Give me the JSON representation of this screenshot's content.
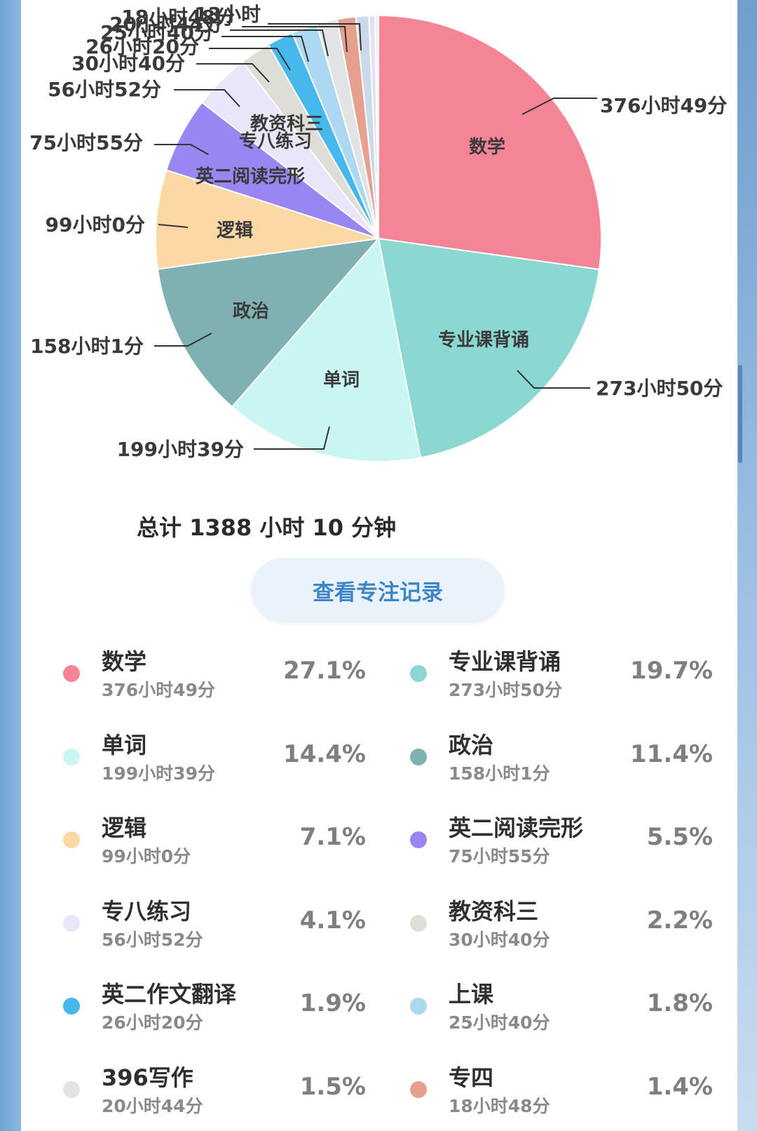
{
  "chart_data": {
    "type": "pie",
    "total_text": "总计 1388 小时 10 分钟",
    "slices": [
      {
        "name": "数学",
        "duration": "376小时49分",
        "percent": "27.1%",
        "minutes": 22609,
        "color": "#f38597"
      },
      {
        "name": "专业课背诵",
        "duration": "273小时50分",
        "percent": "19.7%",
        "minutes": 16430,
        "color": "#8bd7d2"
      },
      {
        "name": "单词",
        "duration": "199小时39分",
        "percent": "14.4%",
        "minutes": 11979,
        "color": "#c9f5f3"
      },
      {
        "name": "政治",
        "duration": "158小时1分",
        "percent": "11.4%",
        "minutes": 9481,
        "color": "#7fb0b2"
      },
      {
        "name": "逻辑",
        "duration": "99小时0分",
        "percent": "7.1%",
        "minutes": 5940,
        "color": "#fbd8a4"
      },
      {
        "name": "英二阅读完形",
        "duration": "75小时55分",
        "percent": "5.5%",
        "minutes": 4555,
        "color": "#9a86f3"
      },
      {
        "name": "专八练习",
        "duration": "56小时52分",
        "percent": "4.1%",
        "minutes": 3412,
        "color": "#e9e6fa"
      },
      {
        "name": "教资科三",
        "duration": "30小时40分",
        "percent": "2.2%",
        "minutes": 1840,
        "color": "#deddd6"
      },
      {
        "name": "英二作文翻译",
        "duration": "26小时20分",
        "percent": "1.9%",
        "minutes": 1580,
        "color": "#46b8ec"
      },
      {
        "name": "上课",
        "duration": "25小时40分",
        "percent": "1.8%",
        "minutes": 1540,
        "color": "#acd9f1"
      },
      {
        "name": "396写作",
        "duration": "20小时44分",
        "percent": "1.5%",
        "minutes": 1244,
        "color": "#e2e3e4"
      },
      {
        "name": "专四",
        "duration": "18小时48分",
        "percent": "1.4%",
        "minutes": 1128,
        "color": "#e8a08e"
      },
      {
        "name": "",
        "duration": "13小时",
        "percent": "",
        "minutes": 780,
        "color": "#ccd9ea"
      },
      {
        "name": "",
        "duration": "",
        "percent": "",
        "minutes": 370,
        "color": "#dfe3f3"
      },
      {
        "name": "",
        "duration": "",
        "percent": "",
        "minutes": 200,
        "color": "#eef0f8"
      }
    ]
  },
  "actions": {
    "view_records_label": "查看专注记录"
  }
}
